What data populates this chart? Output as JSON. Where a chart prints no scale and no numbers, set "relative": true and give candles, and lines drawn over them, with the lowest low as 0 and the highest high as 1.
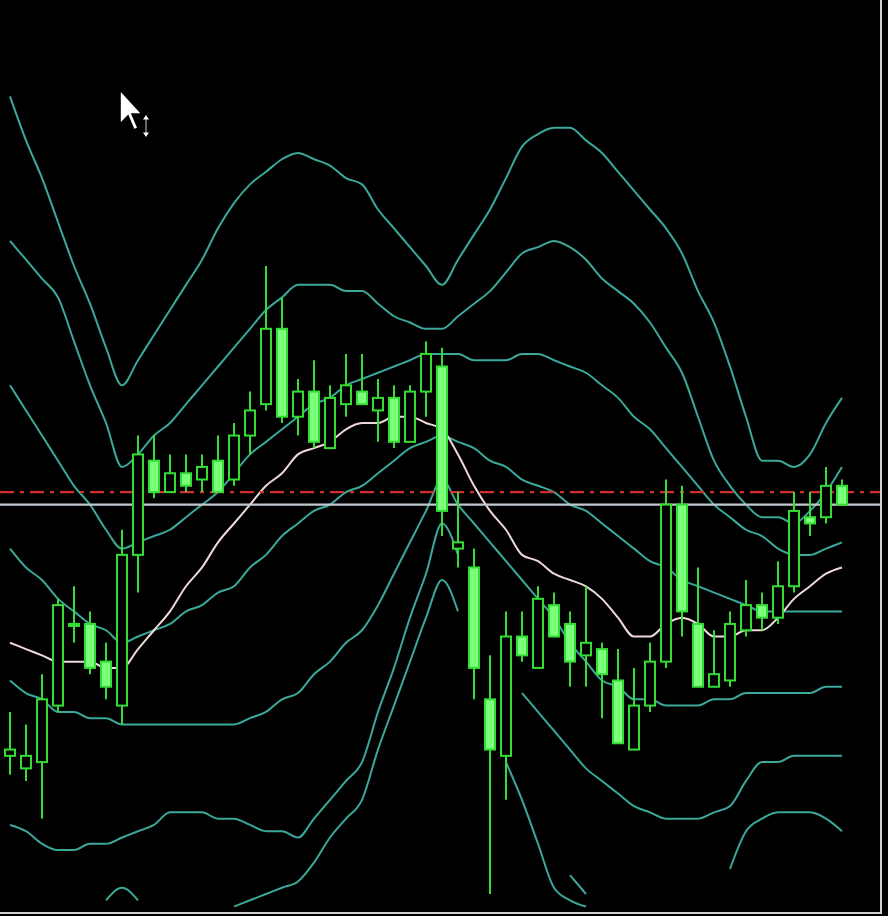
{
  "chart_data": {
    "type": "candlestick",
    "relative": true,
    "categories": [
      null,
      null,
      null,
      null,
      null,
      null,
      null,
      null,
      null,
      null,
      null,
      null,
      null,
      null,
      null,
      null,
      null,
      null,
      null,
      null,
      null,
      null,
      null,
      null,
      null,
      null,
      null,
      null,
      null,
      null,
      null,
      null,
      null,
      null,
      null,
      null,
      null,
      null,
      null,
      null,
      null,
      null,
      null,
      null,
      null,
      null,
      null,
      null,
      null,
      null,
      null,
      null,
      null
    ],
    "color": "#33dd33",
    "ohlc": [
      [
        0.22,
        0.29,
        0.19,
        0.23
      ],
      [
        0.2,
        0.27,
        0.18,
        0.22
      ],
      [
        0.21,
        0.35,
        0.12,
        0.31
      ],
      [
        0.3,
        0.47,
        0.29,
        0.46
      ],
      [
        0.43,
        0.49,
        0.4,
        0.43
      ],
      [
        0.43,
        0.45,
        0.35,
        0.36
      ],
      [
        0.37,
        0.4,
        0.31,
        0.33
      ],
      [
        0.3,
        0.58,
        0.27,
        0.54
      ],
      [
        0.54,
        0.73,
        0.48,
        0.7
      ],
      [
        0.69,
        0.73,
        0.63,
        0.64
      ],
      [
        0.64,
        0.7,
        0.64,
        0.67
      ],
      [
        0.67,
        0.7,
        0.64,
        0.65
      ],
      [
        0.66,
        0.7,
        0.64,
        0.68
      ],
      [
        0.69,
        0.73,
        0.64,
        0.64
      ],
      [
        0.66,
        0.75,
        0.65,
        0.73
      ],
      [
        0.73,
        0.8,
        0.7,
        0.77
      ],
      [
        0.78,
        1.0,
        0.77,
        0.9
      ],
      [
        0.9,
        0.95,
        0.75,
        0.76
      ],
      [
        0.76,
        0.82,
        0.73,
        0.8
      ],
      [
        0.8,
        0.85,
        0.71,
        0.72
      ],
      [
        0.71,
        0.81,
        0.71,
        0.79
      ],
      [
        0.78,
        0.86,
        0.76,
        0.81
      ],
      [
        0.8,
        0.86,
        0.78,
        0.78
      ],
      [
        0.77,
        0.82,
        0.72,
        0.79
      ],
      [
        0.79,
        0.81,
        0.71,
        0.72
      ],
      [
        0.72,
        0.81,
        0.72,
        0.8
      ],
      [
        0.8,
        0.88,
        0.76,
        0.86
      ],
      [
        0.84,
        0.87,
        0.57,
        0.61
      ],
      [
        0.55,
        0.64,
        0.52,
        0.56
      ],
      [
        0.52,
        0.55,
        0.31,
        0.36
      ],
      [
        0.31,
        0.38,
        0.0,
        0.23
      ],
      [
        0.22,
        0.45,
        0.15,
        0.41
      ],
      [
        0.41,
        0.45,
        0.37,
        0.38
      ],
      [
        0.36,
        0.49,
        0.36,
        0.47
      ],
      [
        0.46,
        0.48,
        0.41,
        0.41
      ],
      [
        0.43,
        0.45,
        0.33,
        0.37
      ],
      [
        0.38,
        0.49,
        0.33,
        0.4
      ],
      [
        0.39,
        0.4,
        0.28,
        0.35
      ],
      [
        0.34,
        0.39,
        0.24,
        0.24
      ],
      [
        0.23,
        0.36,
        0.23,
        0.3
      ],
      [
        0.3,
        0.4,
        0.29,
        0.37
      ],
      [
        0.37,
        0.66,
        0.36,
        0.62
      ],
      [
        0.62,
        0.65,
        0.41,
        0.45
      ],
      [
        0.43,
        0.52,
        0.33,
        0.33
      ],
      [
        0.33,
        0.42,
        0.33,
        0.35
      ],
      [
        0.34,
        0.45,
        0.33,
        0.43
      ],
      [
        0.42,
        0.5,
        0.41,
        0.46
      ],
      [
        0.46,
        0.48,
        0.42,
        0.44
      ],
      [
        0.44,
        0.53,
        0.43,
        0.49
      ],
      [
        0.49,
        0.64,
        0.48,
        0.61
      ],
      [
        0.6,
        0.64,
        0.57,
        0.59
      ],
      [
        0.6,
        0.68,
        0.59,
        0.65
      ],
      [
        0.65,
        0.66,
        0.62,
        0.62
      ]
    ],
    "series": [
      {
        "type": "line",
        "color": "#3aa89a",
        "values": [
          1.27,
          1.2,
          1.14,
          1.07,
          1.0,
          0.94,
          0.87,
          0.81,
          0.85,
          0.89,
          0.93,
          0.97,
          1.01,
          1.06,
          1.1,
          1.13,
          1.15,
          1.17,
          1.18,
          1.17,
          1.16,
          1.14,
          1.13,
          1.09,
          1.06,
          1.03,
          1.0,
          0.97,
          1.01,
          1.05,
          1.09,
          1.14,
          1.19,
          1.21,
          1.22,
          1.22,
          1.2,
          1.18,
          1.15,
          1.12,
          1.09,
          1.06,
          1.02,
          0.96,
          0.91,
          0.84,
          0.76,
          0.69,
          0.69,
          0.68,
          0.7,
          0.75,
          0.79
        ]
      },
      {
        "type": "line",
        "color": "#3aa89a",
        "values": [
          1.04,
          1.01,
          0.98,
          0.95,
          0.88,
          0.81,
          0.75,
          0.68,
          0.7,
          0.73,
          0.75,
          0.78,
          0.81,
          0.84,
          0.87,
          0.9,
          0.93,
          0.95,
          0.97,
          0.97,
          0.97,
          0.96,
          0.96,
          0.94,
          0.92,
          0.91,
          0.9,
          0.9,
          0.92,
          0.94,
          0.96,
          0.99,
          1.02,
          1.03,
          1.04,
          1.03,
          1.01,
          0.98,
          0.96,
          0.94,
          0.91,
          0.87,
          0.83,
          0.76,
          0.69,
          0.65,
          0.62,
          0.6,
          0.6,
          0.59,
          0.61,
          0.64,
          0.68
        ]
      },
      {
        "type": "line",
        "color": "#3aa89a",
        "values": [
          0.81,
          0.77,
          0.73,
          0.69,
          0.65,
          0.62,
          0.58,
          0.55,
          0.56,
          0.57,
          0.58,
          0.6,
          0.62,
          0.64,
          0.67,
          0.7,
          0.72,
          0.74,
          0.76,
          0.78,
          0.79,
          0.81,
          0.82,
          0.83,
          0.84,
          0.85,
          0.86,
          0.86,
          0.86,
          0.85,
          0.85,
          0.85,
          0.86,
          0.86,
          0.85,
          0.84,
          0.83,
          0.81,
          0.79,
          0.76,
          0.74,
          0.71,
          0.68,
          0.65,
          0.62,
          0.6,
          0.58,
          0.57,
          0.55,
          0.54,
          0.54,
          0.55,
          0.56
        ]
      },
      {
        "type": "line",
        "color": "#3aa89a",
        "values": [
          0.55,
          0.52,
          0.5,
          0.47,
          0.45,
          0.43,
          0.42,
          0.4,
          0.41,
          0.42,
          0.43,
          0.45,
          0.46,
          0.48,
          0.49,
          0.52,
          0.54,
          0.57,
          0.59,
          0.61,
          0.62,
          0.64,
          0.65,
          0.67,
          0.69,
          0.71,
          0.72,
          0.73,
          0.72,
          0.71,
          0.69,
          0.68,
          0.66,
          0.65,
          0.64,
          0.62,
          0.61,
          0.59,
          0.57,
          0.55,
          0.53,
          0.52,
          0.5,
          0.49,
          0.48,
          0.47,
          0.46,
          0.45,
          0.45,
          0.45,
          0.45,
          0.45,
          0.45
        ]
      },
      {
        "type": "line",
        "color": "#f0d8d8",
        "values": [
          0.4,
          0.39,
          0.38,
          0.37,
          0.37,
          0.37,
          0.36,
          0.36,
          0.39,
          0.42,
          0.45,
          0.49,
          0.52,
          0.56,
          0.59,
          0.62,
          0.65,
          0.67,
          0.7,
          0.71,
          0.72,
          0.74,
          0.75,
          0.75,
          0.76,
          0.76,
          0.75,
          0.74,
          0.7,
          0.65,
          0.61,
          0.58,
          0.54,
          0.53,
          0.51,
          0.5,
          0.49,
          0.47,
          0.44,
          0.41,
          0.41,
          0.43,
          0.44,
          0.43,
          0.41,
          0.41,
          0.42,
          0.42,
          0.44,
          0.47,
          0.49,
          0.51,
          0.52
        ]
      },
      {
        "type": "line",
        "color": "#3aa89a",
        "values": [
          0.34,
          0.32,
          0.31,
          0.29,
          0.29,
          0.28,
          0.28,
          0.27,
          0.27,
          0.27,
          0.27,
          0.27,
          0.27,
          0.27,
          0.27,
          0.28,
          0.29,
          0.31,
          0.32,
          0.35,
          0.37,
          0.4,
          0.42,
          0.46,
          0.51,
          0.56,
          0.61,
          0.66,
          0.62,
          0.59,
          0.56,
          0.53,
          0.5,
          0.47,
          0.44,
          0.4,
          0.37,
          0.34,
          0.33,
          0.31,
          0.31,
          0.3,
          0.3,
          0.3,
          0.31,
          0.31,
          0.32,
          0.32,
          0.32,
          0.32,
          0.32,
          0.33,
          0.33
        ]
      },
      {
        "type": "line",
        "color": "#3aa89a",
        "values": [
          0.11,
          0.1,
          0.08,
          0.07,
          0.07,
          0.08,
          0.08,
          0.09,
          0.1,
          0.11,
          0.13,
          0.13,
          0.13,
          0.12,
          0.12,
          0.11,
          0.1,
          0.1,
          0.09,
          0.12,
          0.15,
          0.18,
          0.21,
          0.29,
          0.36,
          0.44,
          0.51,
          0.59,
          0.54,
          null,
          null,
          null,
          0.32,
          0.29,
          0.26,
          0.23,
          0.2,
          0.18,
          0.16,
          0.14,
          0.13,
          0.12,
          0.12,
          0.12,
          0.13,
          0.14,
          0.18,
          0.21,
          0.21,
          0.22,
          0.22,
          0.22,
          0.22
        ]
      },
      {
        "type": "line",
        "color": "#3aa89a",
        "values": [
          null,
          null,
          null,
          null,
          null,
          null,
          -0.01,
          0.01,
          -0.01,
          null,
          null,
          null,
          null,
          null,
          -0.02,
          -0.01,
          0.0,
          0.01,
          0.02,
          0.05,
          0.09,
          0.12,
          0.15,
          0.23,
          0.3,
          0.37,
          0.44,
          0.5,
          0.45,
          null,
          null,
          0.21,
          0.15,
          0.08,
          0.01,
          -0.01,
          -0.02,
          null,
          null,
          null,
          null,
          null,
          null,
          null,
          null,
          null,
          null,
          null,
          null,
          null,
          null,
          null,
          null
        ]
      },
      {
        "type": "line",
        "color": "#3aa89a",
        "values": [
          null,
          null,
          null,
          null,
          null,
          null,
          null,
          null,
          null,
          null,
          null,
          null,
          null,
          null,
          null,
          null,
          null,
          null,
          null,
          null,
          null,
          null,
          null,
          null,
          null,
          null,
          null,
          null,
          null,
          null,
          null,
          null,
          null,
          null,
          null,
          0.03,
          0.0,
          null,
          null,
          null,
          null,
          null,
          null,
          null,
          null,
          0.04,
          0.1,
          0.12,
          0.13,
          0.13,
          0.13,
          0.12,
          0.1
        ]
      }
    ],
    "ref_lines": [
      {
        "axis": "y",
        "value": 0.64,
        "color": "#d03030",
        "line_style": "dashed"
      },
      {
        "axis": "y",
        "value": 0.62,
        "color": "#c0c8d0",
        "line_style": "solid"
      }
    ]
  }
}
